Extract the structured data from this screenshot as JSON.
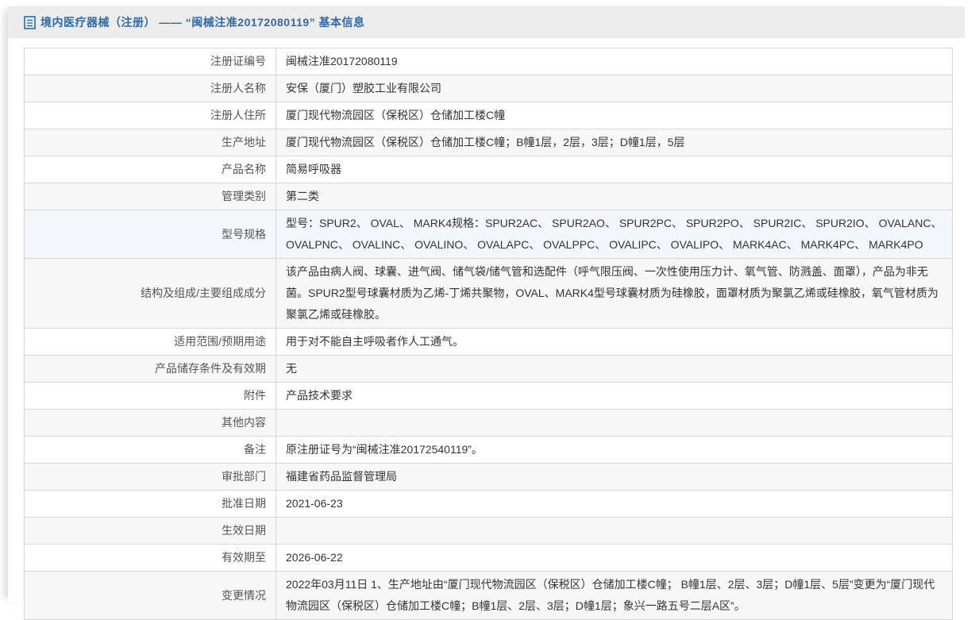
{
  "header": {
    "title": "境内医疗器械（注册） —— “闽械注准20172080119” 基本信息"
  },
  "colors": {
    "accent_blue": "#2e6ba8",
    "header_bar_bg": "#ececec",
    "row_alt_bg": "#f7f7f7",
    "row_highlight_bg": "#f3f6fa",
    "table_border": "#d6d6d6",
    "label_text": "#555555",
    "value_text": "#333333"
  },
  "icons": {
    "document_icon": "document-outline"
  },
  "table": {
    "rows": [
      {
        "label": "注册证编号",
        "value": "闽械注准20172080119"
      },
      {
        "label": "注册人名称",
        "value": "安保（厦门）塑胶工业有限公司"
      },
      {
        "label": "注册人住所",
        "value": "厦门现代物流园区（保税区）仓储加工楼C幢"
      },
      {
        "label": "生产地址",
        "value": "厦门现代物流园区（保税区）仓储加工楼C幢；B幢1层，2层，3层；D幢1层，5层"
      },
      {
        "label": "产品名称",
        "value": "简易呼吸器"
      },
      {
        "label": "管理类别",
        "value": "第二类"
      },
      {
        "label": "型号规格",
        "value": "型号：SPUR2、 OVAL、 MARK4规格：SPUR2AC、 SPUR2AO、 SPUR2PC、 SPUR2PO、 SPUR2IC、 SPUR2IO、 OVALANC、 OVALPNC、 OVALINC、 OVALINO、 OVALAPC、 OVALPPC、 OVALIPC、 OVALIPO、 MARK4AC、 MARK4PC、 MARK4PO",
        "highlighted": true
      },
      {
        "label": "结构及组成/主要组成成分",
        "value": "该产品由病人阀、球囊、进气阀、储气袋/储气管和选配件（呼气限压阀、一次性使用压力计、氧气管、防溅盖、面罩），产品为非无菌。SPUR2型号球囊材质为乙烯-丁烯共聚物，OVAL、MARK4型号球囊材质为硅橡胶，面罩材质为聚氯乙烯或硅橡胶，氧气管材质为聚氯乙烯或硅橡胶。"
      },
      {
        "label": "适用范围/预期用途",
        "value": "用于对不能自主呼吸者作人工通气。"
      },
      {
        "label": "产品储存条件及有效期",
        "value": "无"
      },
      {
        "label": "附件",
        "value": "产品技术要求"
      },
      {
        "label": "其他内容",
        "value": ""
      },
      {
        "label": "备注",
        "value": "原注册证号为“闽械注准20172540119”。"
      },
      {
        "label": "审批部门",
        "value": "福建省药品监督管理局"
      },
      {
        "label": "批准日期",
        "value": "2021-06-23"
      },
      {
        "label": "生效日期",
        "value": ""
      },
      {
        "label": "有效期至",
        "value": "2026-06-22"
      },
      {
        "label": "变更情况",
        "value": "2022年03月11日 1、生产地址由“厦门现代物流园区（保税区）仓储加工楼C幢； B幢1层、2层、3层；D幢1层、5层”变更为“厦门现代物流园区（保税区）仓储加工楼C幢；B幢1层、2层、3层；D幢1层；象兴一路五号二层A区”。"
      }
    ]
  }
}
